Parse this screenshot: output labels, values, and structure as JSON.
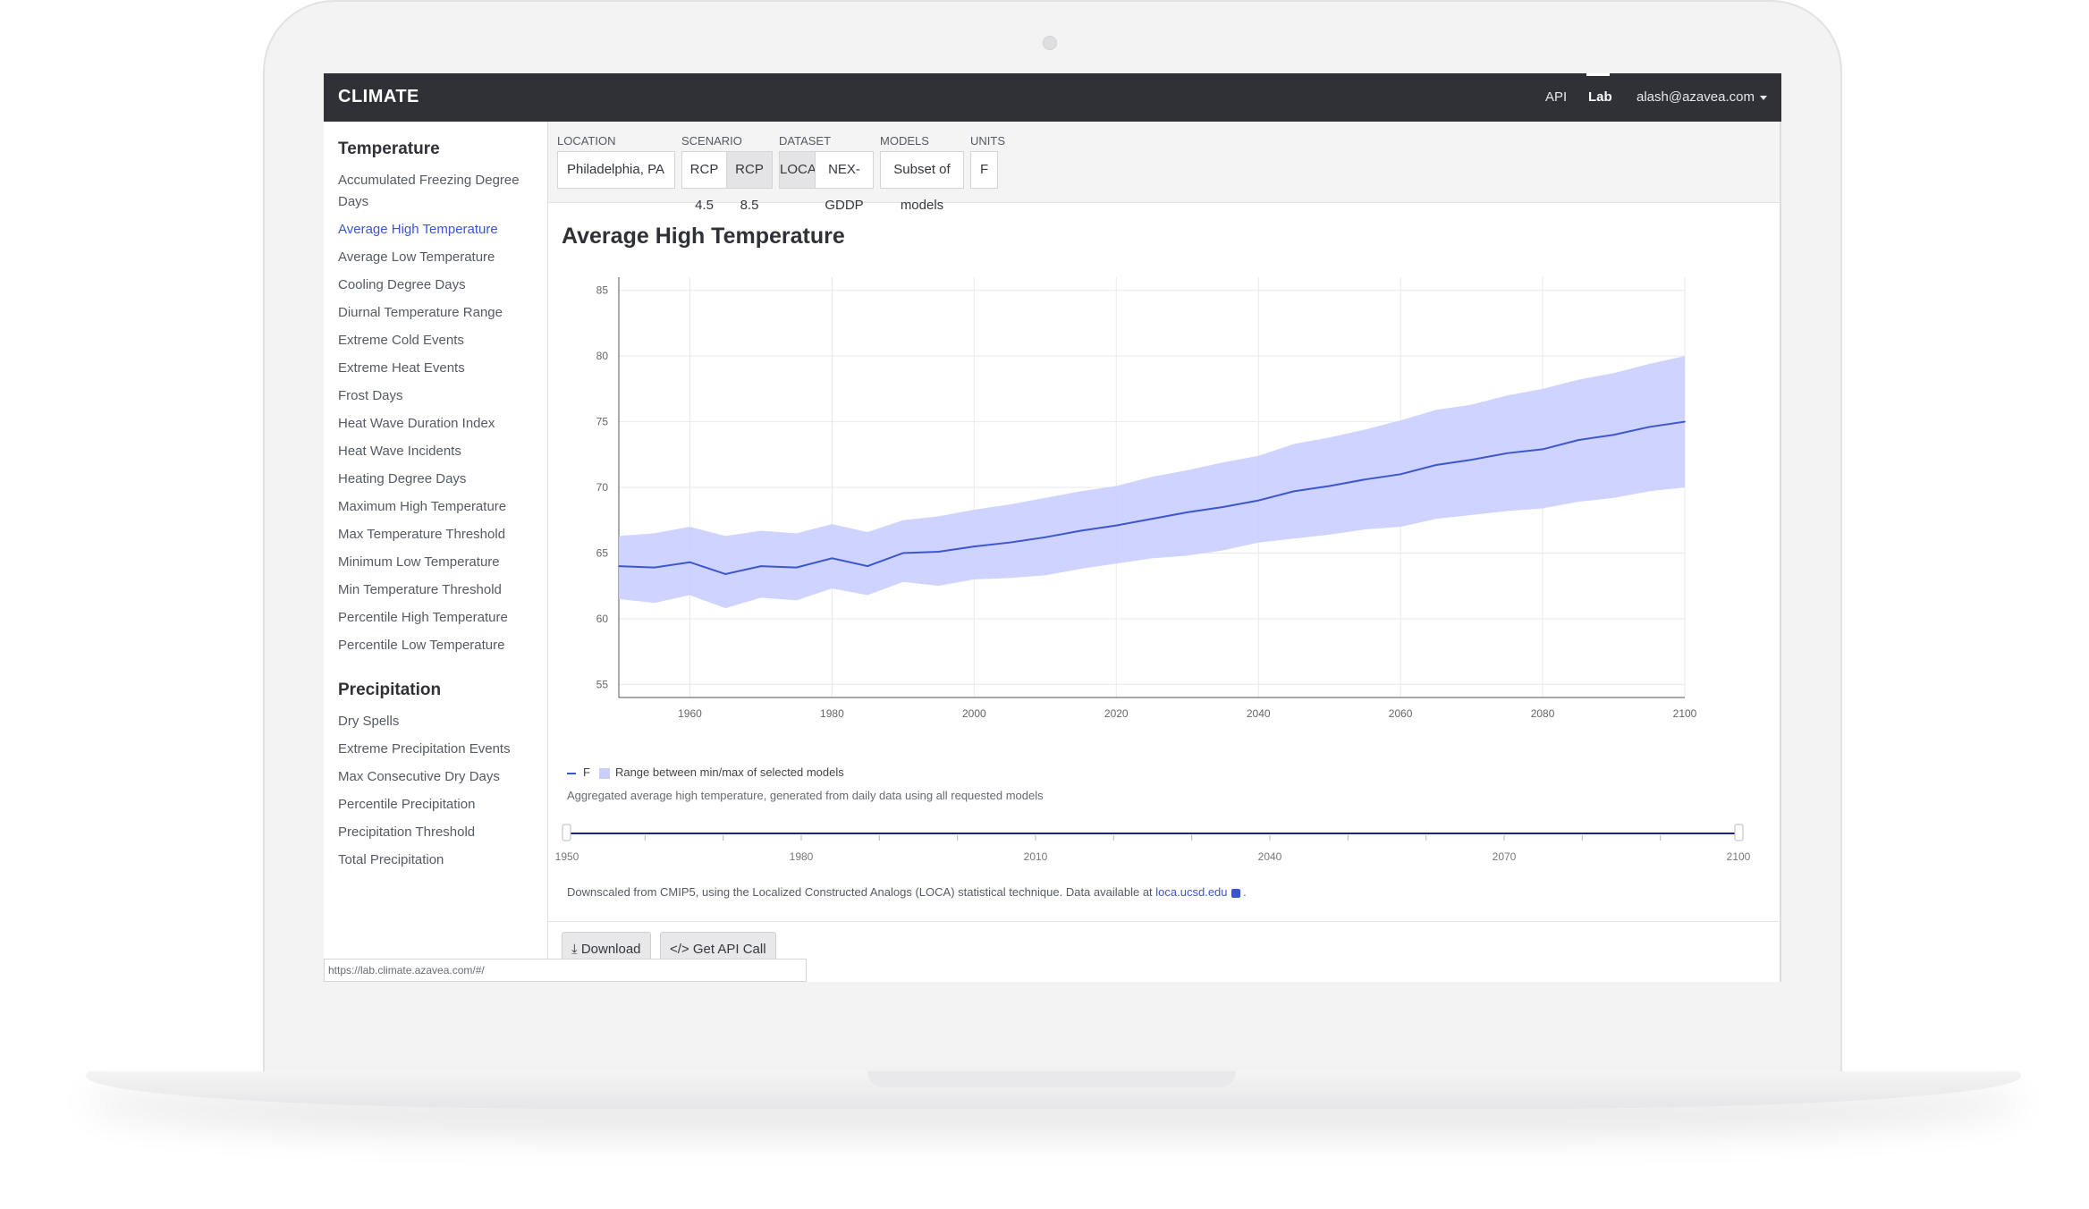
{
  "nav": {
    "brand": "CLIMATE",
    "api": "API",
    "lab": "Lab",
    "user": "alash@azavea.com"
  },
  "sidebar": {
    "temperature_heading": "Temperature",
    "temperature_items": [
      "Accumulated Freezing Degree Days",
      "Average High Temperature",
      "Average Low Temperature",
      "Cooling Degree Days",
      "Diurnal Temperature Range",
      "Extreme Cold Events",
      "Extreme Heat Events",
      "Frost Days",
      "Heat Wave Duration Index",
      "Heat Wave Incidents",
      "Heating Degree Days",
      "Maximum High Temperature",
      "Max Temperature Threshold",
      "Minimum Low Temperature",
      "Min Temperature Threshold",
      "Percentile High Temperature",
      "Percentile Low Temperature"
    ],
    "active_item": "Average High Temperature",
    "precipitation_heading": "Precipitation",
    "precipitation_items": [
      "Dry Spells",
      "Extreme Precipitation Events",
      "Max Consecutive Dry Days",
      "Percentile Precipitation",
      "Precipitation Threshold",
      "Total Precipitation"
    ]
  },
  "controls": {
    "location_label": "LOCATION",
    "location_value": "Philadelphia, PA",
    "scenario_label": "SCENARIO",
    "scenario_options": [
      "RCP 4.5",
      "RCP 8.5"
    ],
    "scenario_selected": "RCP 8.5",
    "dataset_label": "DATASET",
    "dataset_options": [
      "LOCA",
      "NEX-GDDP"
    ],
    "dataset_selected": "LOCA",
    "models_label": "MODELS",
    "models_value": "Subset of models",
    "units_label": "UNITS",
    "units_value": "F"
  },
  "chart": {
    "title": "Average High Temperature",
    "legend_series": "F",
    "legend_range": "Range between min/max of selected models",
    "caption": "Aggregated average high temperature, generated from daily data using all requested models",
    "source_text": "Downscaled from CMIP5, using the Localized Constructed Analogs (LOCA) statistical technique. Data available at",
    "source_link": "loca.ucsd.edu",
    "source_end": "."
  },
  "chart_data": {
    "type": "area",
    "title": "Average High Temperature",
    "xlabel": "",
    "ylabel": "",
    "xlim": [
      1950,
      2100
    ],
    "ylim": [
      54,
      86
    ],
    "x_ticks": [
      1960,
      1980,
      2000,
      2020,
      2040,
      2060,
      2080,
      2100
    ],
    "y_ticks": [
      55,
      60,
      65,
      70,
      75,
      80,
      85
    ],
    "grid": true,
    "legend": "bottom-left",
    "series": [
      {
        "name": "F",
        "x": [
          1950,
          1955,
          1960,
          1965,
          1970,
          1975,
          1980,
          1985,
          1990,
          1995,
          2000,
          2005,
          2010,
          2015,
          2020,
          2025,
          2030,
          2035,
          2040,
          2045,
          2050,
          2055,
          2060,
          2065,
          2070,
          2075,
          2080,
          2085,
          2090,
          2095,
          2100
        ],
        "values": [
          64.0,
          63.9,
          64.3,
          63.4,
          64.0,
          63.9,
          64.6,
          64.0,
          65.0,
          65.1,
          65.5,
          65.8,
          66.2,
          66.7,
          67.1,
          67.6,
          68.1,
          68.5,
          69.0,
          69.7,
          70.1,
          70.6,
          71.0,
          71.7,
          72.1,
          72.6,
          72.9,
          73.6,
          74.0,
          74.6,
          75.0
        ]
      }
    ],
    "range": {
      "name": "Range between min/max of selected models",
      "x": [
        1950,
        1955,
        1960,
        1965,
        1970,
        1975,
        1980,
        1985,
        1990,
        1995,
        2000,
        2005,
        2010,
        2015,
        2020,
        2025,
        2030,
        2035,
        2040,
        2045,
        2050,
        2055,
        2060,
        2065,
        2070,
        2075,
        2080,
        2085,
        2090,
        2095,
        2100
      ],
      "min": [
        61.5,
        61.2,
        61.8,
        60.8,
        61.6,
        61.4,
        62.3,
        61.8,
        62.8,
        62.5,
        63.0,
        63.1,
        63.3,
        63.8,
        64.2,
        64.6,
        64.8,
        65.2,
        65.8,
        66.1,
        66.4,
        66.8,
        67.0,
        67.6,
        67.9,
        68.2,
        68.4,
        68.9,
        69.2,
        69.7,
        70.0
      ],
      "max": [
        66.3,
        66.5,
        67.0,
        66.3,
        66.7,
        66.5,
        67.2,
        66.6,
        67.5,
        67.8,
        68.3,
        68.7,
        69.2,
        69.7,
        70.1,
        70.8,
        71.3,
        71.9,
        72.4,
        73.3,
        73.8,
        74.4,
        75.1,
        75.9,
        76.3,
        77.0,
        77.5,
        78.2,
        78.7,
        79.4,
        80.0
      ]
    }
  },
  "slider": {
    "ticks": [
      "1950",
      "1980",
      "2010",
      "2040",
      "2070",
      "2100"
    ],
    "range_start": 1950,
    "range_end": 2100
  },
  "actions": {
    "download": "Download",
    "api_call": "Get API Call"
  },
  "status_url": "https://lab.climate.azavea.com/#/",
  "colors": {
    "accent": "#3d55cf",
    "range_fill": "#c9ceff",
    "topbar": "#2f3137"
  }
}
